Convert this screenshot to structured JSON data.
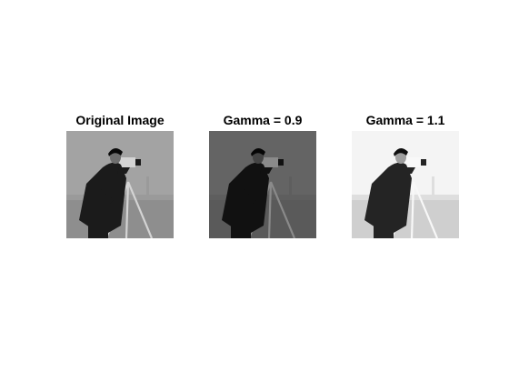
{
  "panels": [
    {
      "title": "Original Image",
      "tone": {
        "sky": "#a3a3a3",
        "field": "#8e8e8e",
        "coat": "#1b1b1b",
        "skin": "#6e6e6e",
        "hair": "#0a0a0a",
        "tripod": "#d4d4d4",
        "building": "#9a9a9a"
      }
    },
    {
      "title": "Gamma = 0.9",
      "tone": {
        "sky": "#646464",
        "field": "#5a5a5a",
        "coat": "#111111",
        "skin": "#444444",
        "hair": "#060606",
        "tripod": "#8a8a8a",
        "building": "#5e5e5e"
      }
    },
    {
      "title": "Gamma = 1.1",
      "tone": {
        "sky": "#f4f4f4",
        "field": "#cfcfcf",
        "coat": "#242424",
        "skin": "#9e9e9e",
        "hair": "#0e0e0e",
        "tripod": "#f8f8f8",
        "building": "#dedede"
      }
    }
  ]
}
